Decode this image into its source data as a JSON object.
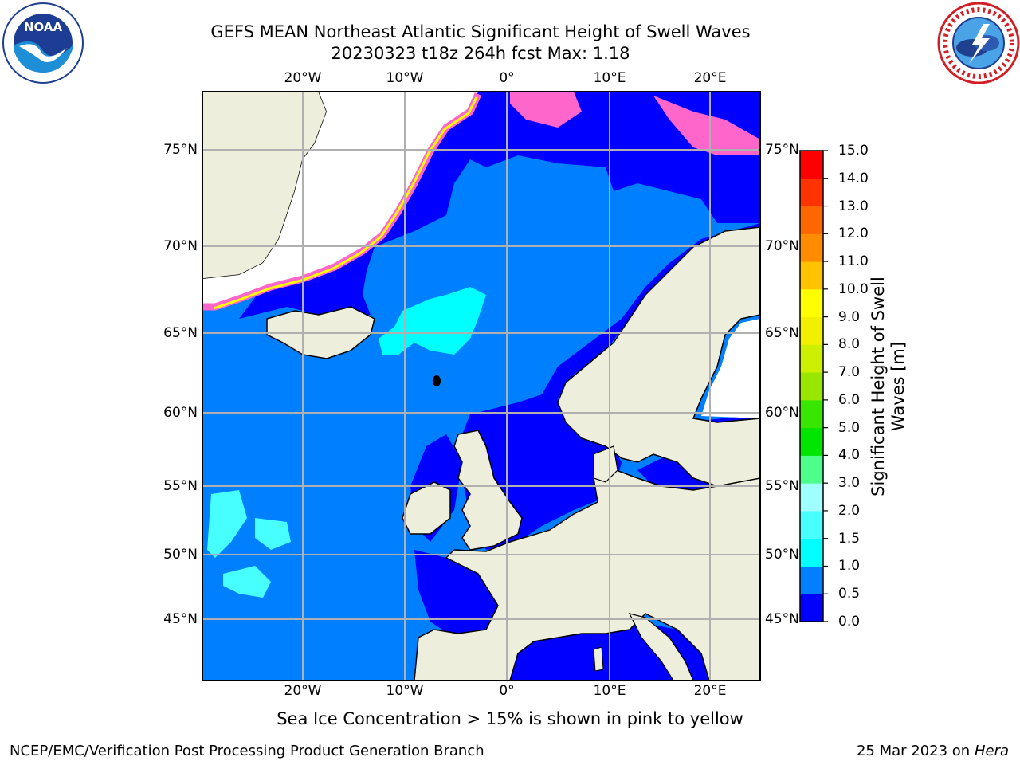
{
  "title": {
    "line1": "GEFS MEAN Northeast Atlantic Significant Height of Swell Waves",
    "line2": "20230323 t18z 264h fcst   Max: 1.18"
  },
  "axes": {
    "lon_labels": [
      "20°W",
      "10°W",
      "0°",
      "10°E",
      "20°E"
    ],
    "lat_labels": [
      "75°N",
      "70°N",
      "65°N",
      "60°N",
      "55°N",
      "50°N",
      "45°N"
    ]
  },
  "colorbar": {
    "label": "Significant Height of Swell Waves [m]",
    "ticks": [
      "0.0",
      "0.5",
      "1.0",
      "1.5",
      "2.0",
      "3.0",
      "4.0",
      "5.0",
      "6.0",
      "7.0",
      "8.0",
      "9.0",
      "10.0",
      "11.0",
      "12.0",
      "13.0",
      "14.0",
      "15.0"
    ],
    "colors": [
      "#0000ff",
      "#007fff",
      "#00ffff",
      "#47ffff",
      "#a0ffff",
      "#4dff8a",
      "#00e600",
      "#39e600",
      "#99e600",
      "#ccf000",
      "#f0f000",
      "#ffff00",
      "#ffc300",
      "#ff8c00",
      "#ff6600",
      "#ff3300",
      "#ff0000"
    ]
  },
  "ice_note": "Sea Ice Concentration > 15% is shown in pink to yellow",
  "footer": {
    "left": "NCEP/EMC/Verification Post Processing Product Generation Branch",
    "date": "25 Mar 2023 on",
    "host": "Hera"
  },
  "map_colors": {
    "ocean_deep": "#007fff",
    "ocean_low": "#0000ff",
    "swell_cyan": "#00ffff",
    "land": "#eeeedc",
    "ice_pink": "#ff66cc",
    "ice_yellow": "#ffff00",
    "grid": "#b0b0b0"
  }
}
